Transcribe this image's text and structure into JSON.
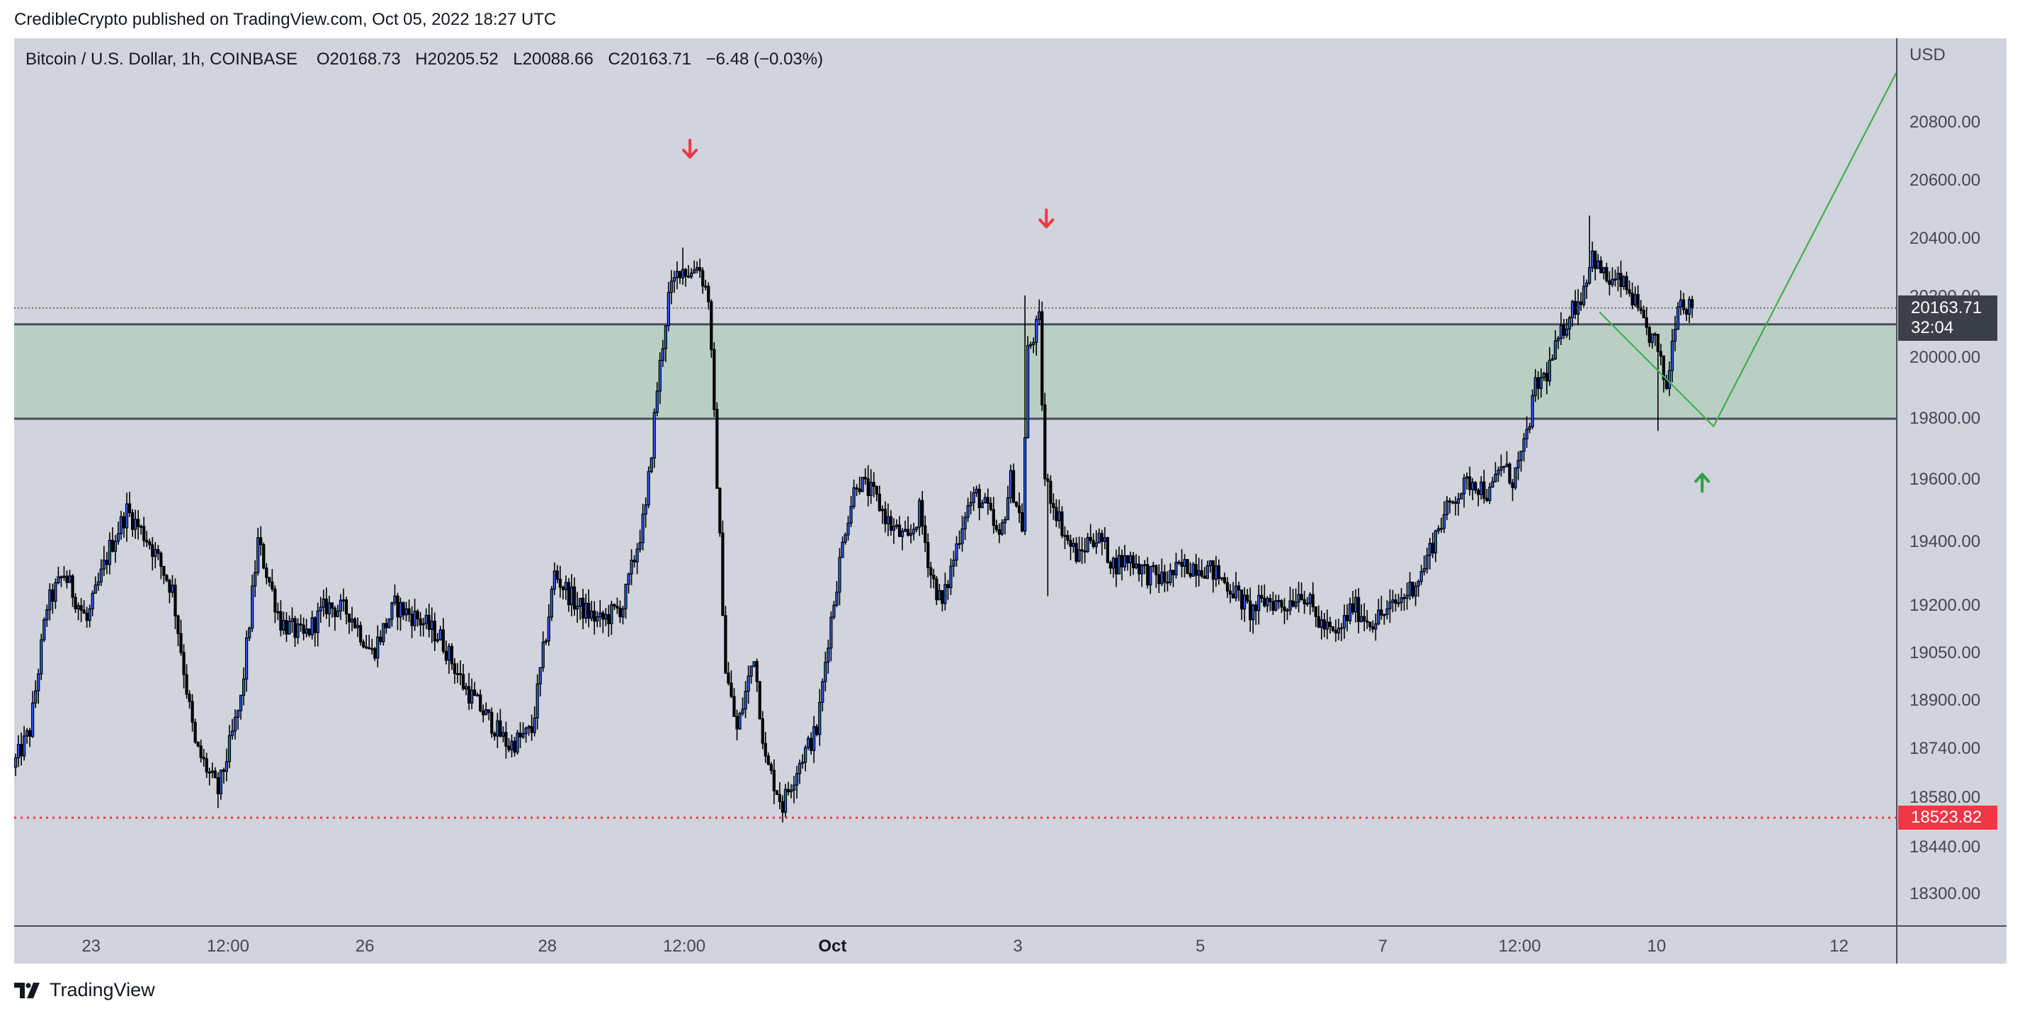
{
  "header": {
    "published": "CredibleCrypto published on TradingView.com, Oct 05, 2022 18:27 UTC"
  },
  "legend": {
    "symbol": "Bitcoin / U.S. Dollar, 1h, COINBASE",
    "open_label": "O",
    "open": "20168.73",
    "high_label": "H",
    "high": "20205.52",
    "low_label": "L",
    "low": "20088.66",
    "close_label": "C",
    "close": "20163.71",
    "change": "−6.48 (−0.03%)"
  },
  "axis": {
    "currency": "USD",
    "y_ticks": [
      "20800.00",
      "20600.00",
      "20400.00",
      "20200.00",
      "20000.00",
      "19800.00",
      "19600.00",
      "19400.00",
      "19200.00",
      "19050.00",
      "18900.00",
      "18740.00",
      "18580.00",
      "18440.00",
      "18300.00"
    ],
    "x_ticks": [
      "23",
      "12:00",
      "26",
      "28",
      "12:00",
      "Oct",
      "3",
      "5",
      "7",
      "12:00",
      "10",
      "12"
    ]
  },
  "price_label": {
    "price": "20163.71",
    "countdown": "32:04"
  },
  "low_label": {
    "price": "18523.82"
  },
  "footer": {
    "brand": "TradingView"
  },
  "colors": {
    "background": "#d1d4dc",
    "zone_fill": "#b9cfc4",
    "zone_border": "#4a4e5a",
    "bull_candle": "#2962ff",
    "bear_candle": "#000000",
    "down_arrow": "#f23645",
    "up_arrow": "#2e9e46",
    "projection": "#3fae49",
    "low_line": "#f23645"
  },
  "chart_data": {
    "type": "candlestick",
    "symbol": "Bitcoin / U.S. Dollar",
    "interval": "1h",
    "exchange": "COINBASE",
    "ylabel": "USD",
    "last_price": 20163.71,
    "marked_low": 18523.82,
    "zone": {
      "low": 19800,
      "high": 20110
    },
    "path": [
      [
        0,
        18680
      ],
      [
        6,
        18800
      ],
      [
        12,
        19200
      ],
      [
        18,
        19300
      ],
      [
        26,
        19150
      ],
      [
        34,
        19380
      ],
      [
        40,
        19500
      ],
      [
        48,
        19400
      ],
      [
        56,
        19250
      ],
      [
        64,
        18750
      ],
      [
        72,
        18600
      ],
      [
        80,
        18900
      ],
      [
        86,
        19400
      ],
      [
        94,
        19150
      ],
      [
        102,
        19100
      ],
      [
        110,
        19200
      ],
      [
        118,
        19180
      ],
      [
        126,
        19050
      ],
      [
        134,
        19200
      ],
      [
        142,
        19160
      ],
      [
        150,
        19100
      ],
      [
        158,
        18950
      ],
      [
        166,
        18850
      ],
      [
        174,
        18750
      ],
      [
        182,
        18800
      ],
      [
        190,
        19300
      ],
      [
        198,
        19200
      ],
      [
        206,
        19150
      ],
      [
        214,
        19200
      ],
      [
        222,
        19500
      ],
      [
        226,
        19900
      ],
      [
        230,
        20200
      ],
      [
        234,
        20300
      ],
      [
        238,
        20280
      ],
      [
        240,
        20320
      ],
      [
        244,
        20200
      ],
      [
        246,
        19800
      ],
      [
        250,
        19000
      ],
      [
        254,
        18800
      ],
      [
        260,
        19050
      ],
      [
        264,
        18700
      ],
      [
        270,
        18560
      ],
      [
        276,
        18700
      ],
      [
        282,
        18800
      ],
      [
        286,
        19100
      ],
      [
        292,
        19450
      ],
      [
        296,
        19600
      ],
      [
        302,
        19550
      ],
      [
        308,
        19450
      ],
      [
        314,
        19400
      ],
      [
        318,
        19500
      ],
      [
        322,
        19300
      ],
      [
        326,
        19200
      ],
      [
        330,
        19350
      ],
      [
        334,
        19500
      ],
      [
        338,
        19550
      ],
      [
        342,
        19500
      ],
      [
        346,
        19400
      ],
      [
        350,
        19600
      ],
      [
        354,
        19450
      ],
      [
        356,
        20020
      ],
      [
        360,
        20120
      ],
      [
        362,
        19600
      ],
      [
        366,
        19500
      ],
      [
        370,
        19400
      ],
      [
        374,
        19350
      ],
      [
        378,
        19420
      ],
      [
        382,
        19400
      ],
      [
        386,
        19330
      ],
      [
        392,
        19350
      ],
      [
        398,
        19300
      ],
      [
        404,
        19280
      ],
      [
        410,
        19320
      ],
      [
        416,
        19330
      ],
      [
        422,
        19300
      ],
      [
        428,
        19250
      ],
      [
        434,
        19180
      ],
      [
        440,
        19220
      ],
      [
        446,
        19200
      ],
      [
        452,
        19250
      ],
      [
        458,
        19150
      ],
      [
        464,
        19100
      ],
      [
        470,
        19200
      ],
      [
        476,
        19150
      ],
      [
        482,
        19180
      ],
      [
        488,
        19230
      ],
      [
        494,
        19300
      ],
      [
        500,
        19450
      ],
      [
        506,
        19550
      ],
      [
        512,
        19600
      ],
      [
        518,
        19550
      ],
      [
        522,
        19650
      ],
      [
        526,
        19600
      ],
      [
        530,
        19700
      ],
      [
        534,
        19900
      ],
      [
        538,
        19950
      ],
      [
        542,
        20050
      ],
      [
        546,
        20150
      ],
      [
        550,
        20200
      ],
      [
        554,
        20350
      ],
      [
        556,
        20300
      ],
      [
        560,
        20250
      ],
      [
        564,
        20250
      ],
      [
        568,
        20200
      ],
      [
        572,
        20100
      ],
      [
        576,
        20050
      ],
      [
        580,
        19900
      ],
      [
        584,
        20200
      ],
      [
        588,
        20163.71
      ]
    ],
    "annotations": {
      "down_arrows": [
        {
          "x": 237,
          "y": 20710
        },
        {
          "x": 362,
          "y": 20470
        }
      ],
      "up_arrow": {
        "x": 592,
        "y": 19590
      },
      "projection": [
        [
          556,
          20150
        ],
        [
          596,
          19775
        ],
        [
          660,
          20970
        ]
      ]
    }
  }
}
